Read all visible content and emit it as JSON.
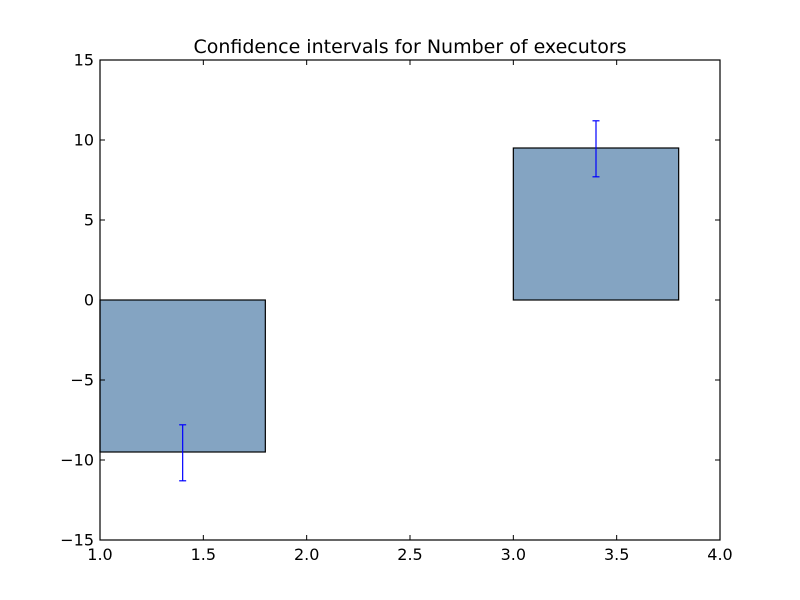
{
  "chart_data": {
    "type": "bar",
    "title": "Confidence intervals for Number of executors",
    "xlabel": "",
    "ylabel": "",
    "xlim": [
      1.0,
      4.0
    ],
    "ylim": [
      -15,
      15
    ],
    "x_ticks": [
      1.0,
      1.5,
      2.0,
      2.5,
      3.0,
      3.5,
      4.0
    ],
    "x_tick_labels": [
      "1.0",
      "1.5",
      "2.0",
      "2.5",
      "3.0",
      "3.5",
      "4.0"
    ],
    "y_ticks": [
      -15,
      -10,
      -5,
      0,
      5,
      10,
      15
    ],
    "y_tick_labels": [
      "−15",
      "−10",
      "−5",
      "0",
      "5",
      "10",
      "15"
    ],
    "grid": false,
    "legend": "none",
    "bars": [
      {
        "x_start": 1.0,
        "x_end": 1.8,
        "value": -9.5,
        "err_center_x": 1.4,
        "err_low": -11.3,
        "err_high": -7.8
      },
      {
        "x_start": 3.0,
        "x_end": 3.8,
        "value": 9.5,
        "err_center_x": 3.4,
        "err_low": 7.7,
        "err_high": 11.2
      }
    ],
    "colors": {
      "bar_fill": "#84a4c2",
      "bar_edge": "#000000",
      "errorbar": "#0000ff",
      "axes": "#000000"
    }
  }
}
